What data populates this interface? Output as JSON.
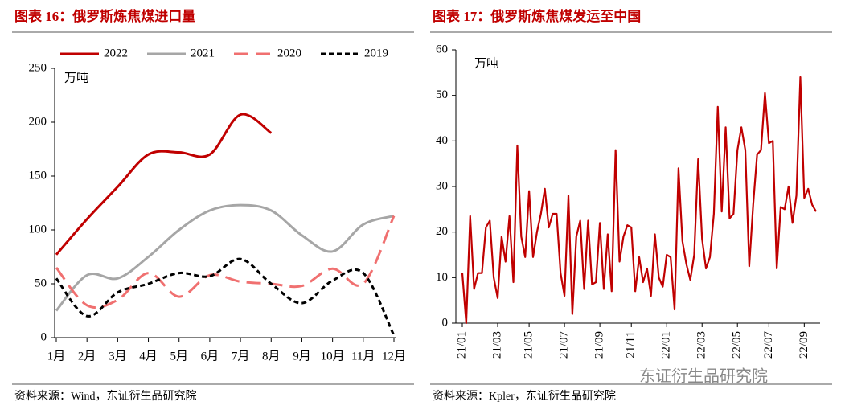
{
  "chart_data": [
    {
      "type": "line",
      "title": "图表 16：俄罗斯炼焦煤进口量",
      "unit": "万吨",
      "source": "资料来源：Wind，东证衍生品研究院",
      "categories": [
        "1月",
        "2月",
        "3月",
        "4月",
        "5月",
        "6月",
        "7月",
        "8月",
        "9月",
        "10月",
        "11月",
        "12月"
      ],
      "ylim": [
        0,
        250
      ],
      "yticks": [
        0,
        50,
        100,
        150,
        200,
        250
      ],
      "smooth": true,
      "legend": "top",
      "series": [
        {
          "name": "2022",
          "color": "#c00000",
          "line_style": "solid",
          "values": [
            77,
            110,
            140,
            170,
            172,
            170,
            207,
            190,
            null,
            null,
            null,
            null
          ]
        },
        {
          "name": "2021",
          "color": "#a6a6a6",
          "line_style": "solid",
          "values": [
            25,
            58,
            55,
            75,
            100,
            118,
            123,
            118,
            95,
            80,
            105,
            113
          ]
        },
        {
          "name": "2020",
          "color": "#f07070",
          "line_style": "dashed",
          "values": [
            65,
            30,
            35,
            60,
            38,
            58,
            52,
            50,
            48,
            64,
            50,
            113
          ]
        },
        {
          "name": "2019",
          "color": "#000000",
          "line_style": "dotted",
          "values": [
            55,
            20,
            42,
            50,
            60,
            57,
            73,
            50,
            32,
            53,
            60,
            2
          ]
        }
      ]
    },
    {
      "type": "line",
      "title": "图表 17：俄罗斯炼焦煤发运至中国",
      "unit": "万吨",
      "source": "资料来源：Kpler，东证衍生品研究院",
      "watermark": "东证衍生品研究院",
      "categories": [
        "21/01",
        null,
        null,
        null,
        null,
        null,
        null,
        null,
        null,
        "21/03",
        null,
        null,
        null,
        null,
        null,
        null,
        null,
        "21/05",
        null,
        null,
        null,
        null,
        null,
        null,
        null,
        null,
        "21/07",
        null,
        null,
        null,
        null,
        null,
        null,
        null,
        null,
        "21/09",
        null,
        null,
        null,
        null,
        null,
        null,
        null,
        "21/11",
        null,
        null,
        null,
        null,
        null,
        null,
        null,
        null,
        "22/01",
        null,
        null,
        null,
        null,
        null,
        null,
        null,
        null,
        "22/03",
        null,
        null,
        null,
        null,
        null,
        null,
        null,
        null,
        "22/05",
        null,
        null,
        null,
        null,
        null,
        null,
        null,
        "22/07",
        null,
        null,
        null,
        null,
        null,
        null,
        null,
        null,
        "22/09",
        null,
        null,
        null
      ],
      "ylim": [
        0,
        60
      ],
      "yticks": [
        0,
        10,
        20,
        30,
        40,
        50,
        60
      ],
      "smooth": false,
      "series": [
        {
          "color": "#c00000",
          "line_style": "solid",
          "values": [
            11,
            0,
            23.5,
            7.5,
            11,
            11,
            21,
            22.5,
            10,
            5.5,
            19,
            13.5,
            23.5,
            9,
            39,
            19,
            14.5,
            29,
            14.5,
            20,
            24,
            29.5,
            21,
            24,
            24,
            11,
            6,
            28,
            2,
            19,
            22.5,
            7.5,
            22.5,
            8.5,
            9,
            22,
            7.5,
            19.5,
            7,
            38,
            13.5,
            19,
            21.5,
            21,
            7,
            14.5,
            9,
            12,
            6,
            19.5,
            10,
            8,
            15,
            14.5,
            3,
            34,
            18,
            13,
            9.5,
            15,
            36,
            18.5,
            12,
            14.5,
            24,
            47.5,
            24.5,
            43,
            23,
            24,
            38,
            43,
            38,
            12.5,
            26,
            37,
            38,
            50.5,
            39.5,
            40,
            12,
            25.5,
            25,
            30,
            22,
            28,
            54,
            27.5,
            29.5,
            26,
            24.5
          ]
        }
      ]
    }
  ]
}
